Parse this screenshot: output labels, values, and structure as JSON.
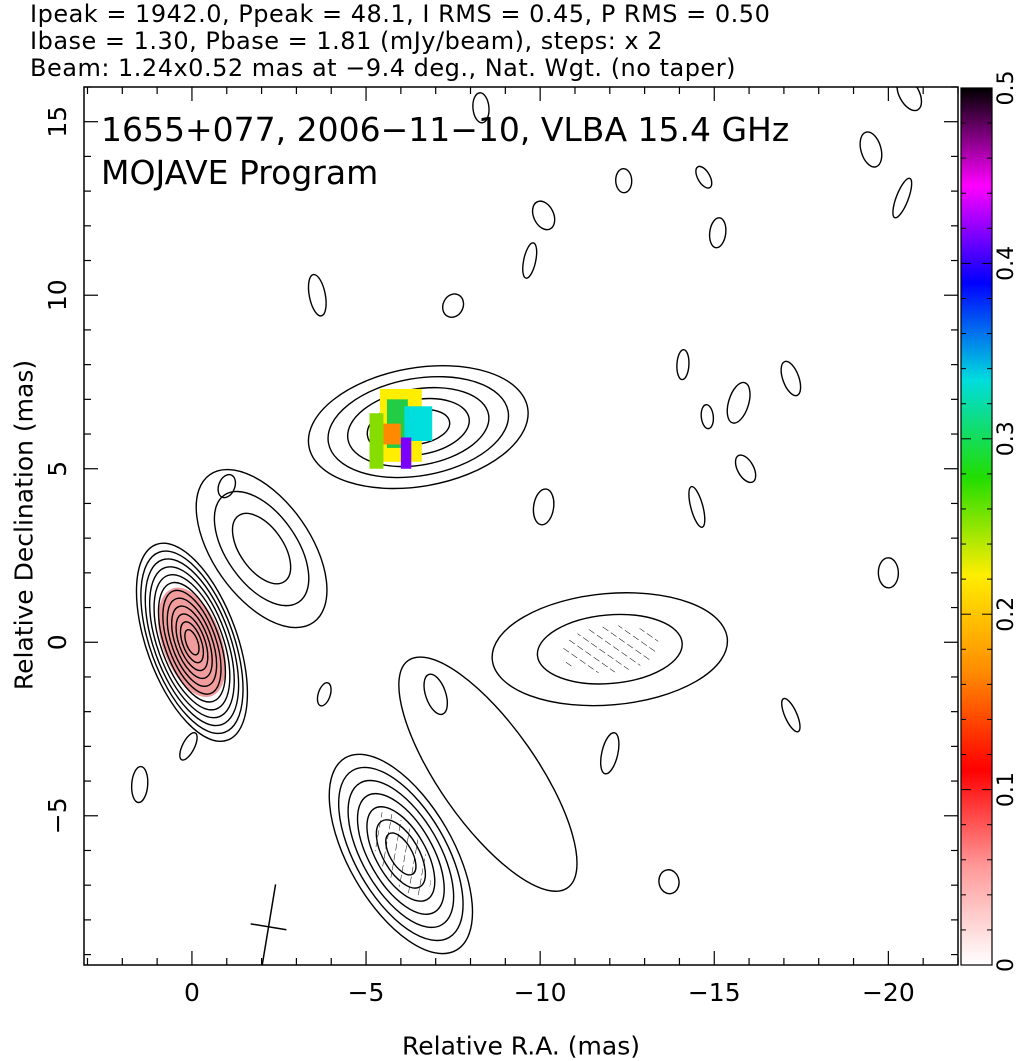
{
  "header": {
    "line1": "Ipeak = 1942.0, Ppeak = 48.1, I RMS = 0.45, P RMS = 0.50",
    "line2": "Ibase = 1.30, Pbase = 1.81 (mJy/beam), steps: x 2",
    "line3": "Beam: 1.24x0.52 mas at −9.4 deg., Nat. Wgt. (no taper)"
  },
  "plot_title": {
    "line1": "1655+077, 2006−11−10, VLBA 15.4 GHz",
    "line2": "MOJAVE Program"
  },
  "chart_data": {
    "type": "contour",
    "xlabel": "Relative R.A. (mas)",
    "ylabel": "Relative Declination (mas)",
    "xlim": [
      3.1,
      -22.0
    ],
    "ylim": [
      -9.3,
      16.0
    ],
    "x_ticks": [
      0,
      -5,
      -10,
      -15,
      -20
    ],
    "x_tick_labels": [
      "0",
      "−5",
      "−10",
      "−15",
      "−20"
    ],
    "y_ticks": [
      -5,
      0,
      5,
      10,
      15
    ],
    "y_tick_labels": [
      "−5",
      "0",
      "5",
      "10",
      "15"
    ],
    "colorbar": {
      "min": 0,
      "max": 0.5,
      "ticks": [
        0,
        0.1,
        0.2,
        0.3,
        0.4,
        0.5
      ],
      "tick_labels": [
        "0",
        "0.1",
        "0.2",
        "0.3",
        "0.4",
        "0.5"
      ],
      "colors": [
        "#ffffff",
        "#ff9a9a",
        "#ff0000",
        "#ff8a00",
        "#ffee00",
        "#22dd00",
        "#00dddd",
        "#0000ff",
        "#ff00ff",
        "#000000"
      ]
    },
    "beam": {
      "major_mas": 1.24,
      "minor_mas": 0.52,
      "pa_deg": -9.4,
      "center": [
        -2.2,
        -8.2
      ]
    },
    "components": [
      {
        "name": "core",
        "center": [
          0.0,
          0.0
        ],
        "pa_deg": -20,
        "n_levels": 12,
        "outer_semi_axes": [
          1.3,
          3.0
        ],
        "peak_fraction": 0.1
      },
      {
        "name": "jet-knot-ne",
        "center": [
          -2.0,
          2.7
        ],
        "pa_deg": -35,
        "n_levels": 3,
        "outer_semi_axes": [
          1.4,
          2.6
        ]
      },
      {
        "name": "north-component",
        "center": [
          -6.5,
          6.2
        ],
        "pa_deg": 80,
        "n_levels": 5,
        "outer_semi_axes": [
          1.7,
          3.2
        ],
        "frac_pol_patch": [
          0.18,
          0.3
        ]
      },
      {
        "name": "west-component",
        "center": [
          -12.0,
          -0.2
        ],
        "pa_deg": 85,
        "n_levels": 2,
        "outer_semi_axes": [
          1.6,
          3.4
        ]
      },
      {
        "name": "south-component",
        "center": [
          -6.0,
          -6.1
        ],
        "pa_deg": -30,
        "n_levels": 7,
        "outer_semi_axes": [
          1.5,
          3.2
        ]
      },
      {
        "name": "south-tail",
        "center": [
          -8.5,
          -3.8
        ],
        "pa_deg": -35,
        "n_levels": 1,
        "outer_semi_axes": [
          1.4,
          4.0
        ]
      }
    ]
  }
}
